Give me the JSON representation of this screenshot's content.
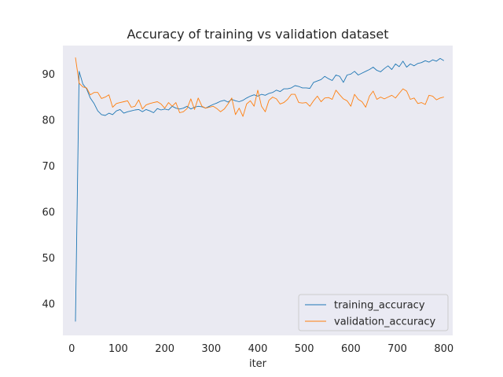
{
  "chart_data": {
    "type": "line",
    "title": "Accuracy of training vs validation dataset",
    "xlabel": "iter",
    "ylabel": "",
    "xlim": [
      -19,
      819
    ],
    "ylim": [
      33.2,
      96.2
    ],
    "xticks": [
      0,
      100,
      200,
      300,
      400,
      500,
      600,
      700,
      800
    ],
    "yticks": [
      40,
      50,
      60,
      70,
      80,
      90
    ],
    "grid": false,
    "background": "#eaeaf2",
    "legend_position": "lower-right",
    "series": [
      {
        "name": "training_accuracy",
        "color": "#1f77b4",
        "x": [
          8,
          16,
          24,
          32,
          40,
          48,
          56,
          64,
          72,
          80,
          88,
          96,
          104,
          112,
          120,
          128,
          136,
          144,
          152,
          160,
          168,
          176,
          184,
          192,
          200,
          208,
          216,
          224,
          232,
          240,
          248,
          256,
          264,
          272,
          280,
          288,
          296,
          304,
          312,
          320,
          328,
          336,
          344,
          352,
          360,
          368,
          376,
          384,
          392,
          400,
          408,
          416,
          424,
          432,
          440,
          448,
          456,
          464,
          472,
          480,
          488,
          496,
          504,
          512,
          520,
          528,
          536,
          544,
          552,
          560,
          568,
          576,
          584,
          592,
          600,
          608,
          616,
          624,
          632,
          640,
          648,
          656,
          664,
          672,
          680,
          688,
          696,
          704,
          712,
          720,
          728,
          736,
          744,
          752,
          760,
          768,
          776,
          784,
          792,
          800
        ],
        "y": [
          36.2,
          90.6,
          87.8,
          86.8,
          84.8,
          83.6,
          82.0,
          81.2,
          81.0,
          81.5,
          81.2,
          82.0,
          82.3,
          81.5,
          81.8,
          82.0,
          82.2,
          82.3,
          81.8,
          82.3,
          82.0,
          81.6,
          82.5,
          82.2,
          82.4,
          82.2,
          83.0,
          82.6,
          82.4,
          82.6,
          83.0,
          82.4,
          82.8,
          83.0,
          82.9,
          82.6,
          83.0,
          83.4,
          83.7,
          84.1,
          84.3,
          83.9,
          84.5,
          84.2,
          84.0,
          84.3,
          84.8,
          85.2,
          85.5,
          85.2,
          85.6,
          85.4,
          85.8,
          86.0,
          86.5,
          86.2,
          86.8,
          86.8,
          87.0,
          87.5,
          87.3,
          87.0,
          87.0,
          86.9,
          88.2,
          88.5,
          88.8,
          89.5,
          89.0,
          88.6,
          89.8,
          89.5,
          88.2,
          89.8,
          90.0,
          90.6,
          89.8,
          90.2,
          90.6,
          91.0,
          91.5,
          90.8,
          90.5,
          91.2,
          91.8,
          91.0,
          92.2,
          91.6,
          92.8,
          91.5,
          92.2,
          91.8,
          92.3,
          92.5,
          92.9,
          92.6,
          93.1,
          92.8,
          93.4,
          92.9
        ]
      },
      {
        "name": "validation_accuracy",
        "color": "#ff7f0e",
        "x": [
          8,
          16,
          24,
          32,
          40,
          48,
          56,
          64,
          72,
          80,
          88,
          96,
          104,
          112,
          120,
          128,
          136,
          144,
          152,
          160,
          168,
          176,
          184,
          192,
          200,
          208,
          216,
          224,
          232,
          240,
          248,
          256,
          264,
          272,
          280,
          288,
          296,
          304,
          312,
          320,
          328,
          336,
          344,
          352,
          360,
          368,
          376,
          384,
          392,
          400,
          408,
          416,
          424,
          432,
          440,
          448,
          456,
          464,
          472,
          480,
          488,
          496,
          504,
          512,
          520,
          528,
          536,
          544,
          552,
          560,
          568,
          576,
          584,
          592,
          600,
          608,
          616,
          624,
          632,
          640,
          648,
          656,
          664,
          672,
          680,
          688,
          696,
          704,
          712,
          720,
          728,
          736,
          744,
          752,
          760,
          768,
          776,
          784,
          792,
          800
        ],
        "y": [
          93.6,
          88.0,
          87.2,
          87.0,
          85.5,
          86.0,
          86.0,
          84.7,
          85.0,
          85.5,
          82.8,
          83.6,
          83.8,
          84.0,
          84.2,
          82.8,
          83.0,
          84.4,
          82.4,
          83.3,
          83.6,
          83.8,
          84.0,
          83.5,
          82.6,
          83.8,
          83.0,
          83.8,
          81.6,
          81.8,
          82.5,
          84.6,
          82.3,
          84.8,
          83.0,
          82.6,
          82.8,
          83.0,
          82.5,
          81.8,
          82.4,
          83.5,
          84.8,
          81.2,
          82.6,
          80.8,
          83.5,
          84.2,
          83.0,
          86.5,
          83.0,
          81.8,
          84.3,
          85.0,
          84.6,
          83.5,
          83.8,
          84.5,
          85.6,
          85.6,
          83.8,
          83.7,
          83.8,
          83.0,
          84.2,
          85.2,
          84.0,
          84.8,
          84.9,
          84.5,
          86.5,
          85.5,
          84.6,
          84.2,
          83.0,
          85.6,
          84.5,
          84.0,
          82.8,
          85.2,
          86.3,
          84.5,
          85.0,
          84.6,
          85.0,
          85.4,
          84.8,
          85.8,
          86.8,
          86.3,
          84.5,
          84.8,
          83.6,
          83.8,
          83.4,
          85.4,
          85.2,
          84.4,
          84.8,
          85.0
        ]
      }
    ]
  }
}
